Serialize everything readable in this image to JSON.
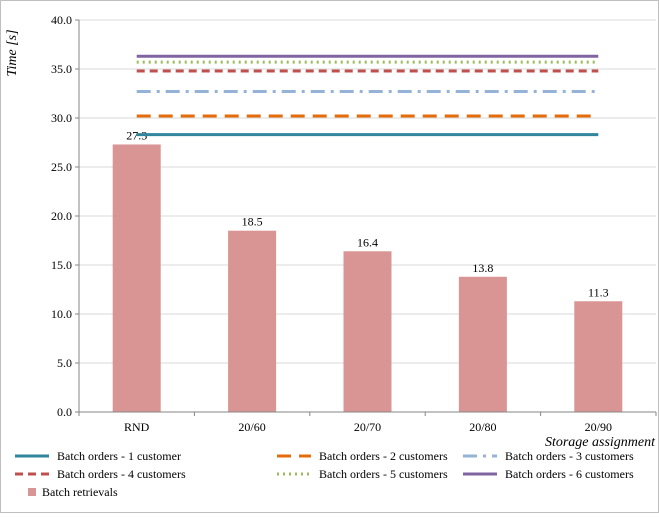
{
  "chart_data": {
    "type": "bar",
    "categories": [
      "RND",
      "20/60",
      "20/70",
      "20/80",
      "20/90"
    ],
    "xlabel": "Storage assignment",
    "ylabel": "Time [s]",
    "ylim": [
      0,
      40
    ],
    "yticks": [
      "0.0",
      "5.0",
      "10.0",
      "15.0",
      "20.0",
      "25.0",
      "30.0",
      "35.0",
      "40.0"
    ],
    "grid": "horizontal",
    "legend_position": "bottom",
    "bar_series": {
      "name": "Batch retrievals",
      "color": "#d99594",
      "values": [
        27.3,
        18.5,
        16.4,
        13.8,
        11.3
      ],
      "labels": [
        "27.3",
        "18.5",
        "16.4",
        "13.8",
        "11.3"
      ]
    },
    "line_series": [
      {
        "name": "Batch orders - 1 customer",
        "value": 28.3,
        "color": "#31859c",
        "dash": "solid"
      },
      {
        "name": "Batch orders - 2 customers",
        "value": 30.2,
        "color": "#e46c0a",
        "dash": "long-dash"
      },
      {
        "name": "Batch orders - 3 customers",
        "value": 32.7,
        "color": "#95b3d7",
        "dash": "long-dash-dot"
      },
      {
        "name": "Batch orders - 4 customers",
        "value": 34.8,
        "color": "#c0504d",
        "dash": "dash"
      },
      {
        "name": "Batch orders - 5 customers",
        "value": 35.7,
        "color": "#9bbb59",
        "dash": "dot"
      },
      {
        "name": "Batch orders - 6 customers",
        "value": 36.3,
        "color": "#8064a2",
        "dash": "solid"
      }
    ]
  }
}
